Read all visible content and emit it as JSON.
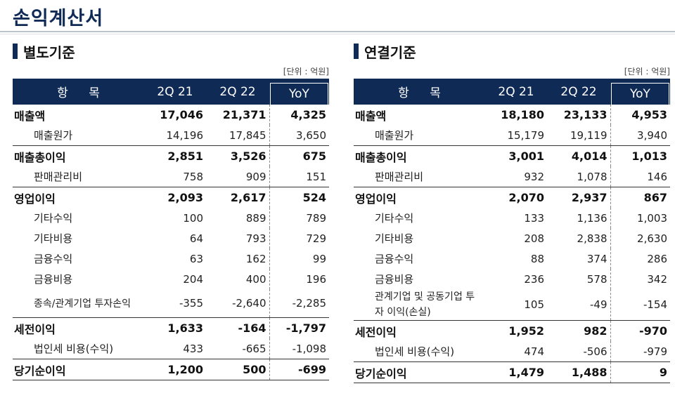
{
  "page": {
    "title": "손익계산서"
  },
  "left": {
    "title": "별도기준",
    "unit": "[단위 : 억원]",
    "headers": [
      "항 목",
      "2Q 21",
      "2Q 22",
      "YoY"
    ],
    "rows": [
      {
        "label": "매출액",
        "v1": "17,046",
        "v2": "21,371",
        "yoy": "4,325"
      },
      {
        "label": "매출원가",
        "v1": "14,196",
        "v2": "17,845",
        "yoy": "3,650"
      },
      {
        "label": "매출총이익",
        "v1": "2,851",
        "v2": "3,526",
        "yoy": "675"
      },
      {
        "label": "판매관리비",
        "v1": "758",
        "v2": "909",
        "yoy": "151"
      },
      {
        "label": "영업이익",
        "v1": "2,093",
        "v2": "2,617",
        "yoy": "524"
      },
      {
        "label": "기타수익",
        "v1": "100",
        "v2": "889",
        "yoy": "789"
      },
      {
        "label": "기타비용",
        "v1": "64",
        "v2": "793",
        "yoy": "729"
      },
      {
        "label": "금융수익",
        "v1": "63",
        "v2": "162",
        "yoy": "99"
      },
      {
        "label": "금융비용",
        "v1": "204",
        "v2": "400",
        "yoy": "196"
      },
      {
        "label": "종속/관계기업 투자손익",
        "v1": "-355",
        "v2": "-2,640",
        "yoy": "-2,285"
      },
      {
        "label": "세전이익",
        "v1": "1,633",
        "v2": "-164",
        "yoy": "-1,797"
      },
      {
        "label": "법인세 비용(수익)",
        "v1": "433",
        "v2": "-665",
        "yoy": "-1,098"
      },
      {
        "label": "당기순이익",
        "v1": "1,200",
        "v2": "500",
        "yoy": "-699"
      }
    ]
  },
  "right": {
    "title": "연결기준",
    "unit": "[단위 : 억원]",
    "headers": [
      "항 목",
      "2Q 21",
      "2Q 22",
      "YoY"
    ],
    "rows": [
      {
        "label": "매출액",
        "v1": "18,180",
        "v2": "23,133",
        "yoy": "4,953"
      },
      {
        "label": "매출원가",
        "v1": "15,179",
        "v2": "19,119",
        "yoy": "3,940"
      },
      {
        "label": "매출총이익",
        "v1": "3,001",
        "v2": "4,014",
        "yoy": "1,013"
      },
      {
        "label": "판매관리비",
        "v1": "932",
        "v2": "1,078",
        "yoy": "146"
      },
      {
        "label": "영업이익",
        "v1": "2,070",
        "v2": "2,937",
        "yoy": "867"
      },
      {
        "label": "기타수익",
        "v1": "133",
        "v2": "1,136",
        "yoy": "1,003"
      },
      {
        "label": "기타비용",
        "v1": "208",
        "v2": "2,838",
        "yoy": "2,630"
      },
      {
        "label": "금융수익",
        "v1": "88",
        "v2": "374",
        "yoy": "286"
      },
      {
        "label": "금융비용",
        "v1": "236",
        "v2": "578",
        "yoy": "342"
      },
      {
        "label": "관계기업 및 공동기업 투자 이익(손실)",
        "v1": "105",
        "v2": "-49",
        "yoy": "-154"
      },
      {
        "label": "세전이익",
        "v1": "1,952",
        "v2": "982",
        "yoy": "-970"
      },
      {
        "label": "법인세 비용(수익)",
        "v1": "474",
        "v2": "-506",
        "yoy": "-979"
      },
      {
        "label": "당기순이익",
        "v1": "1,479",
        "v2": "1,488",
        "yoy": "9"
      }
    ]
  }
}
